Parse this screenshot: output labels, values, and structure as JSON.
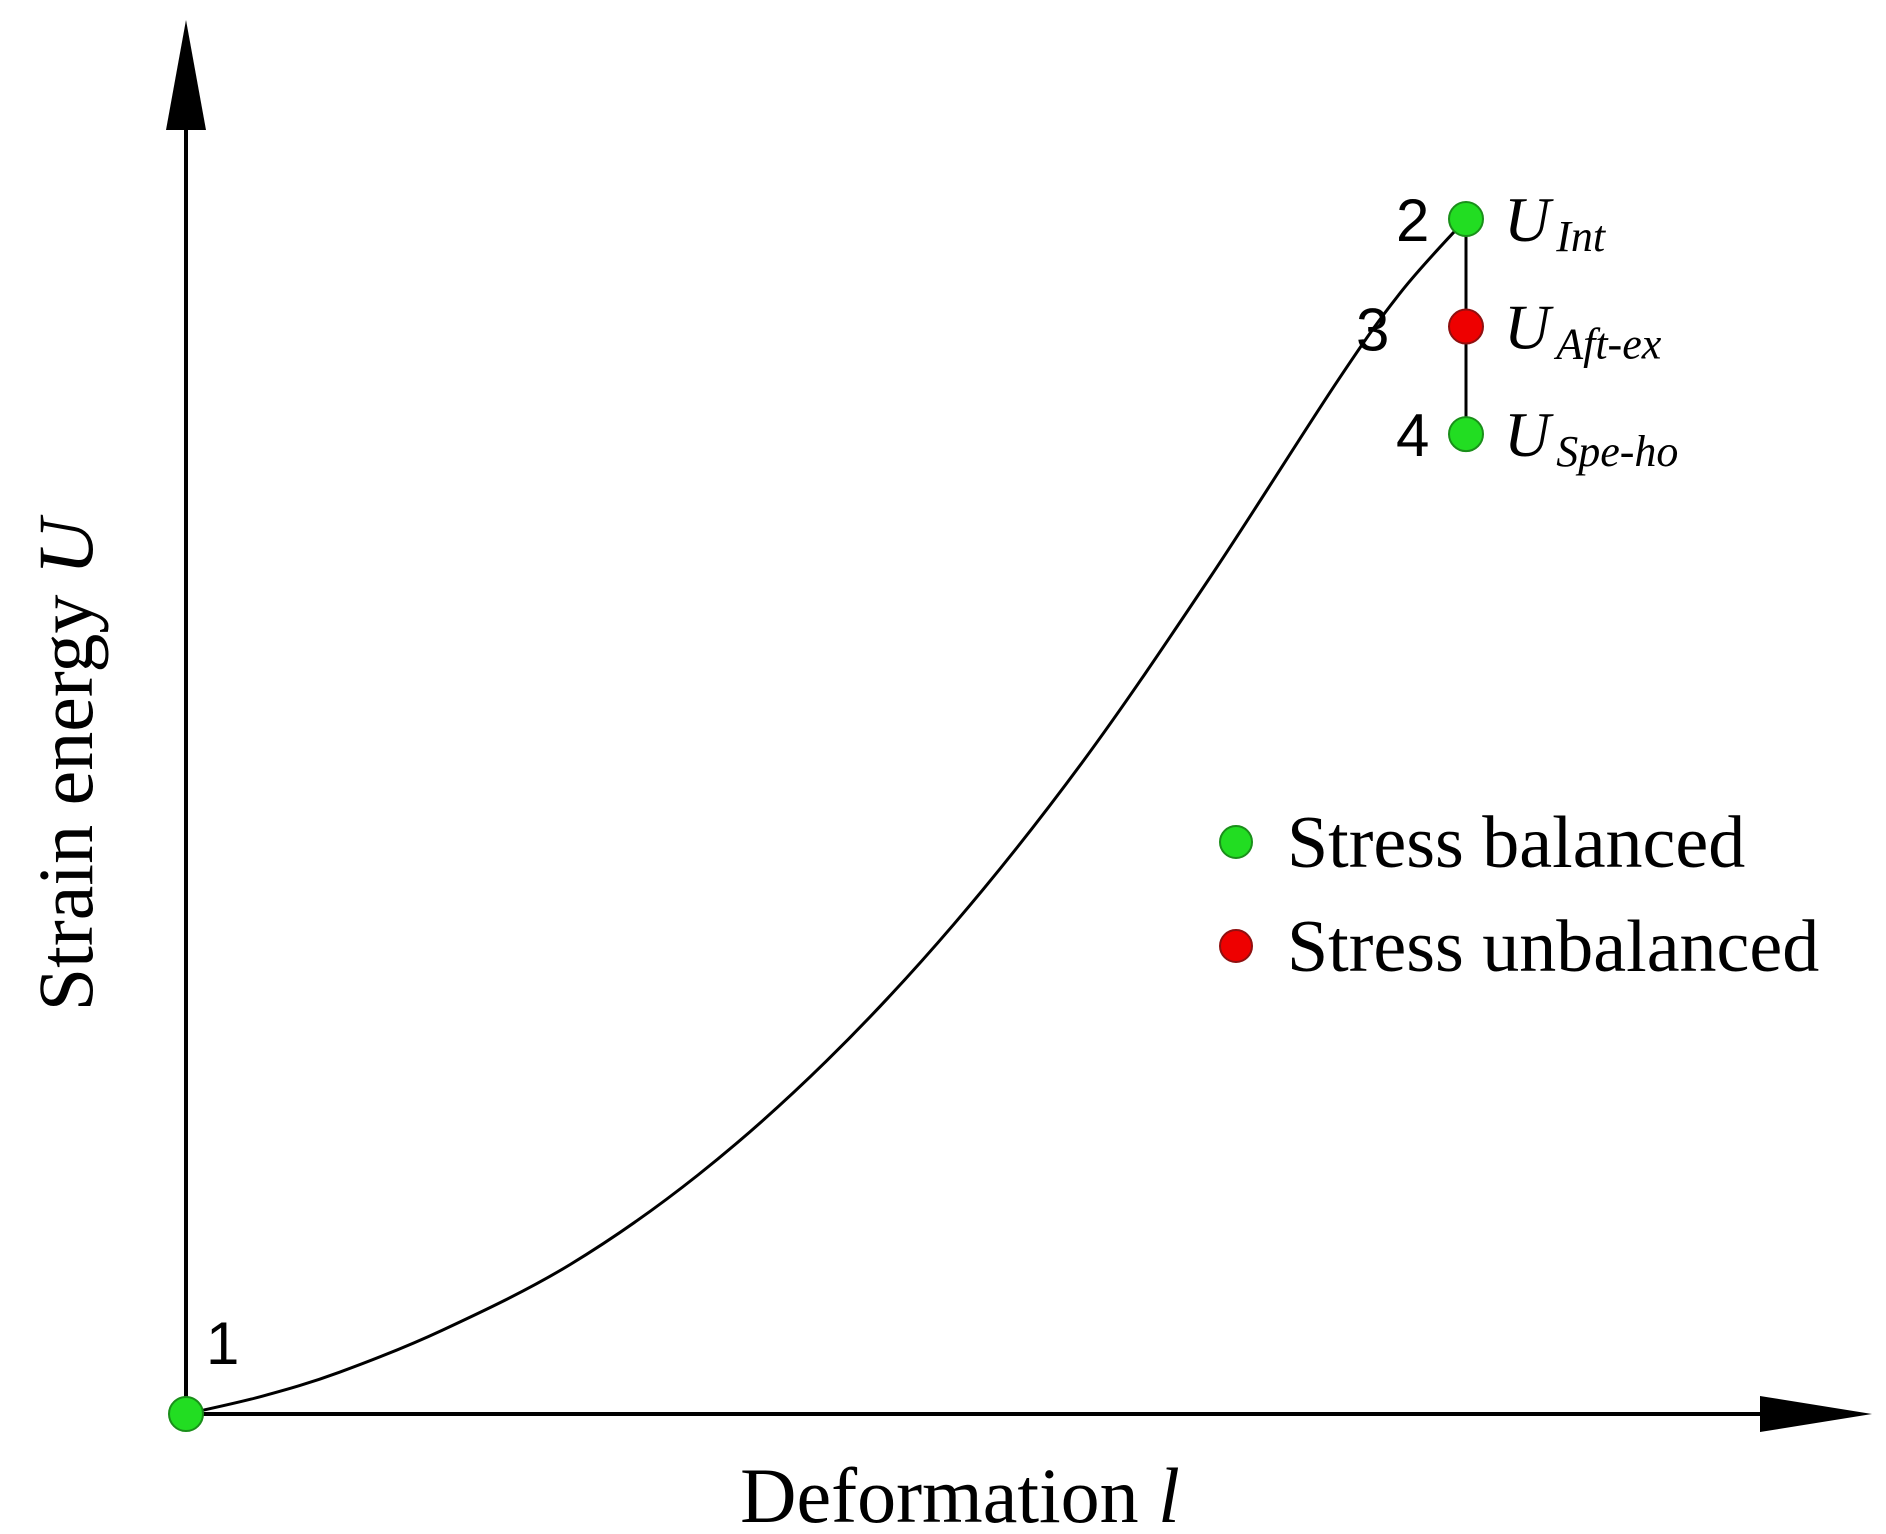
{
  "chart_data": {
    "type": "line",
    "xlabel": {
      "text": "Deformation ",
      "var": "l"
    },
    "ylabel": {
      "text": "Strain energy ",
      "var": "U"
    },
    "curve": {
      "x": [
        0,
        0.06,
        0.12,
        0.2,
        0.3,
        0.4,
        0.5,
        0.6,
        0.7,
        0.8,
        0.9,
        0.95,
        1.0
      ],
      "y": [
        0,
        0.015,
        0.035,
        0.07,
        0.125,
        0.2,
        0.295,
        0.41,
        0.545,
        0.7,
        0.865,
        0.94,
        1.0
      ]
    },
    "points": [
      {
        "label": "1",
        "x": 0,
        "y": 0,
        "status": "balanced"
      },
      {
        "label": "2",
        "x": 1.0,
        "y": 1.0,
        "status": "balanced",
        "annotation": {
          "main": "U",
          "sub": "Int"
        }
      },
      {
        "label": "3",
        "x": 1.0,
        "y": 0.91,
        "status": "unbalanced",
        "annotation": {
          "main": "U",
          "sub": "Aft-ex"
        }
      },
      {
        "label": "4",
        "x": 1.0,
        "y": 0.82,
        "status": "balanced",
        "annotation": {
          "main": "U",
          "sub": "Spe-ho"
        }
      }
    ],
    "legend": [
      {
        "status": "balanced",
        "label": "Stress balanced"
      },
      {
        "status": "unbalanced",
        "label": "Stress unbalanced"
      }
    ],
    "legend_position": "center-right",
    "grid": false,
    "colors": {
      "balanced": "#22dd22",
      "unbalanced": "#ee0000",
      "axis": "#000000"
    }
  }
}
